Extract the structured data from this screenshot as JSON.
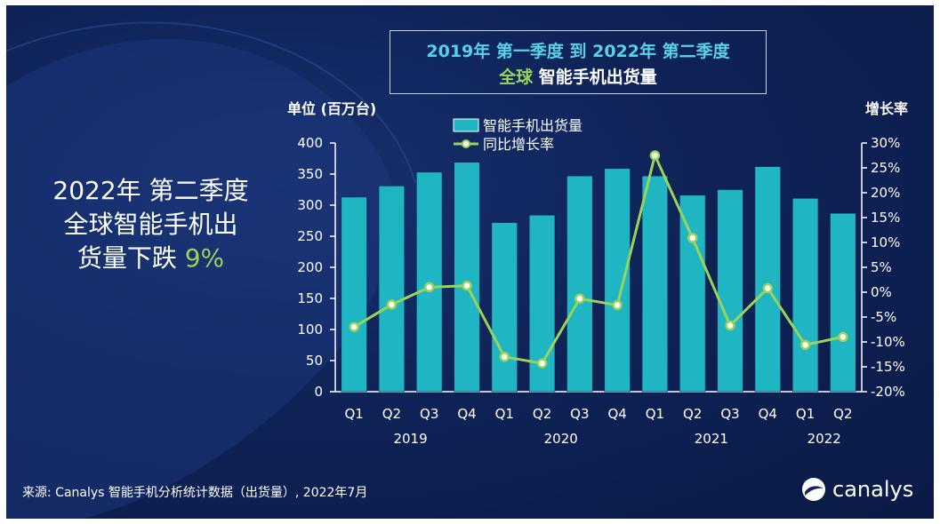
{
  "title": {
    "line1": "2019年 第一季度 到 2022年 第二季度",
    "line2_accent": "全球",
    "line2_rest": " 智能手机出货量"
  },
  "headline": {
    "line1": "2022年 第二季度",
    "line2": "全球智能手机出",
    "line3_text": "货量下跌 ",
    "line3_accent": "9%"
  },
  "source": "来源: Canalys 智能手机分析统计数据（出货量）, 2022年7月",
  "brand": "canalys",
  "colors": {
    "bar": "#1fb5c3",
    "line": "#9ad35a",
    "accent": "#9ad35a",
    "title": "#5ad0e6"
  },
  "chart_data": {
    "type": "bar+line",
    "categories": [
      "Q1",
      "Q2",
      "Q3",
      "Q4",
      "Q1",
      "Q2",
      "Q3",
      "Q4",
      "Q1",
      "Q2",
      "Q3",
      "Q4",
      "Q1",
      "Q2"
    ],
    "years": [
      {
        "label": "2019",
        "span": [
          0,
          3
        ]
      },
      {
        "label": "2020",
        "span": [
          4,
          7
        ]
      },
      {
        "label": "2021",
        "span": [
          8,
          11
        ]
      },
      {
        "label": "2022",
        "span": [
          12,
          13
        ]
      }
    ],
    "series": [
      {
        "name": "智能手机出货量",
        "kind": "bar",
        "axis": "left",
        "values": [
          313,
          331,
          353,
          369,
          272,
          284,
          347,
          359,
          347,
          316,
          325,
          362,
          311,
          287
        ]
      },
      {
        "name": "同比增长率",
        "kind": "line",
        "axis": "right",
        "values": [
          -7,
          -2.5,
          1,
          1.3,
          -13,
          -14.3,
          -1.3,
          -2.6,
          27.5,
          10.9,
          -6.7,
          0.8,
          -10.6,
          -9
        ]
      }
    ],
    "ylabel_left": "单位 (百万台)",
    "ylabel_right": "增长率",
    "ylim_left": [
      0,
      400
    ],
    "ylim_right": [
      -20,
      30
    ],
    "yticks_left": [
      "0",
      "50",
      "100",
      "150",
      "200",
      "250",
      "300",
      "350",
      "400"
    ],
    "yticks_right": [
      "-20%",
      "-15%",
      "-10%",
      "-5%",
      "0%",
      "5%",
      "10%",
      "15%",
      "20%",
      "25%",
      "30%"
    ],
    "legend": [
      "智能手机出货量",
      "同比增长率"
    ],
    "legend_position": "top-center"
  }
}
